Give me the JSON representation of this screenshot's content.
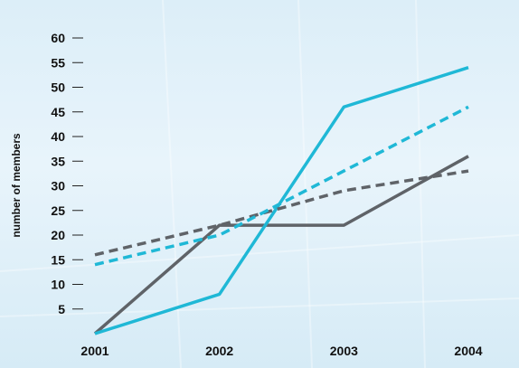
{
  "chart_data": {
    "type": "line",
    "title": "",
    "xlabel": "",
    "ylabel": "number of members",
    "ylim": [
      0,
      60
    ],
    "yticks": [
      5,
      10,
      15,
      20,
      25,
      30,
      35,
      40,
      45,
      50,
      55,
      60
    ],
    "categories": [
      "2001",
      "2002",
      "2003",
      "2004"
    ],
    "grid": false,
    "legend": "none",
    "series": [
      {
        "values": [
          0,
          22,
          22,
          36
        ],
        "color": "#5f6368",
        "style": "solid"
      },
      {
        "values": [
          0,
          8,
          46,
          54
        ],
        "color": "#1fb8d6",
        "style": "solid"
      },
      {
        "values": [
          16,
          22,
          29,
          33
        ],
        "color": "#5f6368",
        "style": "dashed"
      },
      {
        "values": [
          14,
          20,
          33,
          46
        ],
        "color": "#1fb8d6",
        "style": "dashed"
      }
    ]
  }
}
